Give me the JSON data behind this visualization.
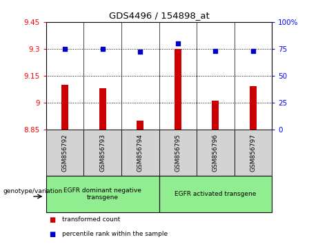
{
  "title": "GDS4496 / 154898_at",
  "samples": [
    "GSM856792",
    "GSM856793",
    "GSM856794",
    "GSM856795",
    "GSM856796",
    "GSM856797"
  ],
  "bar_values": [
    9.1,
    9.08,
    8.9,
    9.3,
    9.01,
    9.09
  ],
  "dot_values": [
    75,
    75,
    72,
    80,
    73,
    73
  ],
  "ylim_left": [
    8.85,
    9.45
  ],
  "ylim_right": [
    0,
    100
  ],
  "yticks_left": [
    8.85,
    9.0,
    9.15,
    9.3,
    9.45
  ],
  "ytick_labels_left": [
    "8.85",
    "9",
    "9.15",
    "9.3",
    "9.45"
  ],
  "yticks_right": [
    0,
    25,
    50,
    75,
    100
  ],
  "ytick_labels_right": [
    "0",
    "25",
    "50",
    "75",
    "100%"
  ],
  "hlines": [
    9.3,
    9.15,
    9.0
  ],
  "bar_color": "#cc0000",
  "dot_color": "#0000cc",
  "groups": [
    {
      "label": "EGFR dominant negative\ntransgene",
      "start": 0,
      "end": 3
    },
    {
      "label": "EGFR activated transgene",
      "start": 3,
      "end": 6
    }
  ],
  "group_bg_color": "#90ee90",
  "sample_bg_color": "#d3d3d3",
  "legend_items": [
    {
      "color": "#cc0000",
      "label": "transformed count"
    },
    {
      "color": "#0000cc",
      "label": "percentile rank within the sample"
    }
  ],
  "genotype_label": "genotype/variation"
}
